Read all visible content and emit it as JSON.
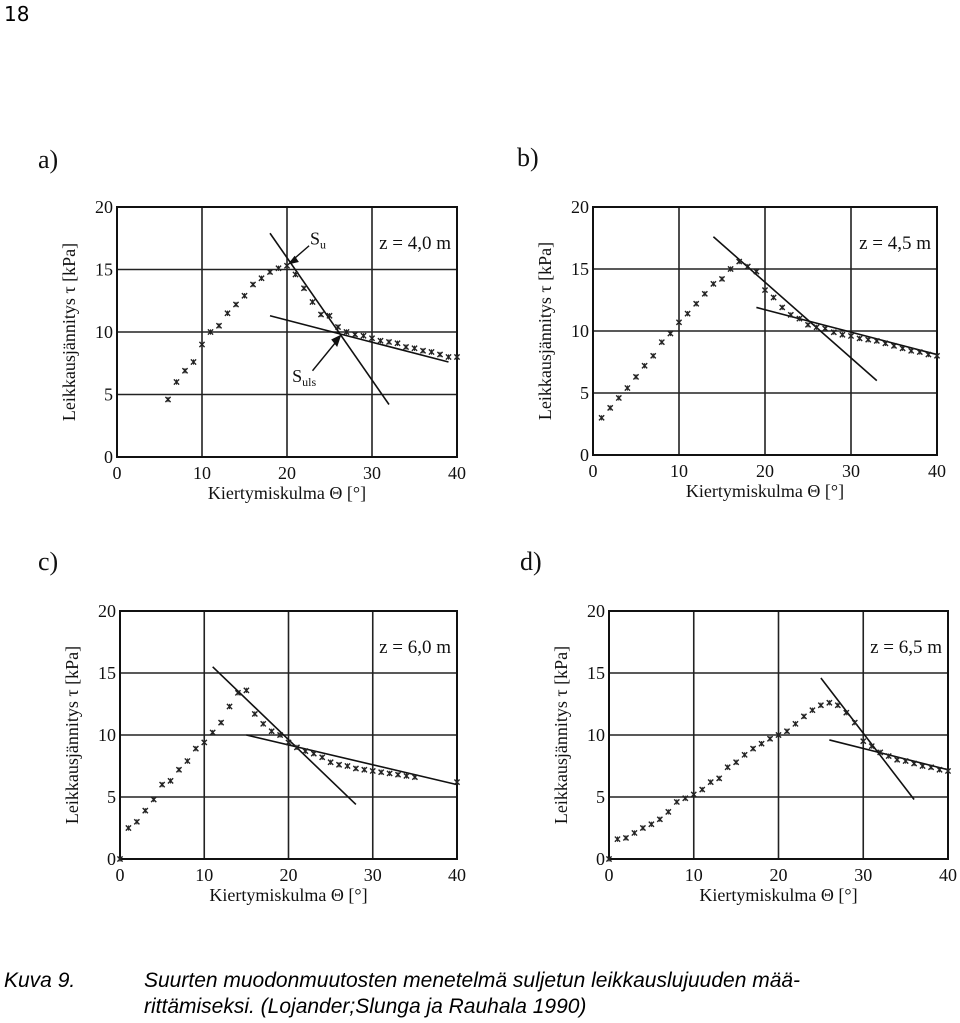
{
  "page_number": "18",
  "caption": {
    "label": "Kuva 9.",
    "line1": "Suurten muodonmuutosten menetelmä suljetun leikkauslujuuden mää-",
    "line2": "rittämiseksi. (Lojander;Slunga ja Rauhala 1990)"
  },
  "chart_data": [
    {
      "panel": "a)",
      "type": "scatter",
      "xlabel": "Kiertymiskulma Θ [°]",
      "ylabel": "Leikkausjännitys τ [kPa]",
      "xlim": [
        0,
        40
      ],
      "ylim": [
        0,
        20
      ],
      "xticks": [
        "0",
        "10",
        "20",
        "30",
        "40"
      ],
      "yticks": [
        "0",
        "5",
        "10",
        "15",
        "20"
      ],
      "depth_label": "z = 4,0 m",
      "annotations": [
        {
          "text": "S",
          "sub": "u"
        },
        {
          "text": "S",
          "sub": "uls"
        }
      ],
      "points": [
        [
          6,
          4.6
        ],
        [
          7,
          6
        ],
        [
          8,
          6.9
        ],
        [
          9,
          7.6
        ],
        [
          10,
          9
        ],
        [
          11,
          10
        ],
        [
          12,
          10.5
        ],
        [
          13,
          11.5
        ],
        [
          14,
          12.2
        ],
        [
          15,
          12.9
        ],
        [
          16,
          13.8
        ],
        [
          17,
          14.3
        ],
        [
          18,
          14.8
        ],
        [
          19,
          15.1
        ],
        [
          20,
          15.3
        ],
        [
          21,
          14.6
        ],
        [
          22,
          13.5
        ],
        [
          23,
          12.4
        ],
        [
          24,
          11.4
        ],
        [
          25,
          11.3
        ],
        [
          26,
          10.4
        ],
        [
          27,
          10
        ],
        [
          28,
          9.8
        ],
        [
          29,
          9.7
        ],
        [
          30,
          9.5
        ],
        [
          31,
          9.3
        ],
        [
          32,
          9.2
        ],
        [
          33,
          9.1
        ],
        [
          34,
          8.8
        ],
        [
          35,
          8.7
        ],
        [
          36,
          8.5
        ],
        [
          37,
          8.4
        ],
        [
          38,
          8.2
        ],
        [
          39,
          8
        ],
        [
          40,
          8
        ]
      ],
      "lines": [
        [
          [
            18,
            17.9
          ],
          [
            32,
            4.2
          ]
        ],
        [
          [
            18,
            11.3
          ],
          [
            39,
            7.6
          ]
        ]
      ],
      "grid": true
    },
    {
      "panel": "b)",
      "type": "scatter",
      "xlabel": "Kiertymiskulma Θ [°]",
      "ylabel": "Leikkausjännitys τ [kPa]",
      "xlim": [
        0,
        40
      ],
      "ylim": [
        0,
        20
      ],
      "xticks": [
        "0",
        "10",
        "20",
        "30",
        "40"
      ],
      "yticks": [
        "0",
        "5",
        "10",
        "15",
        "20"
      ],
      "depth_label": "z = 4,5 m",
      "points": [
        [
          1,
          3
        ],
        [
          2,
          3.8
        ],
        [
          3,
          4.6
        ],
        [
          4,
          5.4
        ],
        [
          5,
          6.3
        ],
        [
          6,
          7.2
        ],
        [
          7,
          8
        ],
        [
          8,
          9.1
        ],
        [
          9,
          9.8
        ],
        [
          10,
          10.7
        ],
        [
          11,
          11.4
        ],
        [
          12,
          12.2
        ],
        [
          13,
          13
        ],
        [
          14,
          13.8
        ],
        [
          15,
          14.2
        ],
        [
          16,
          15
        ],
        [
          17,
          15.6
        ],
        [
          18,
          15.2
        ],
        [
          19,
          14.8
        ],
        [
          20,
          13.3
        ],
        [
          21,
          12.7
        ],
        [
          22,
          11.9
        ],
        [
          23,
          11.3
        ],
        [
          24,
          11
        ],
        [
          25,
          10.5
        ],
        [
          26,
          10.3
        ],
        [
          27,
          10.2
        ],
        [
          28,
          9.9
        ],
        [
          29,
          9.7
        ],
        [
          30,
          9.6
        ],
        [
          31,
          9.4
        ],
        [
          32,
          9.3
        ],
        [
          33,
          9.2
        ],
        [
          34,
          9
        ],
        [
          35,
          8.8
        ],
        [
          36,
          8.6
        ],
        [
          37,
          8.4
        ],
        [
          38,
          8.3
        ],
        [
          39,
          8.1
        ],
        [
          40,
          8
        ]
      ],
      "lines": [
        [
          [
            14,
            17.6
          ],
          [
            33,
            6
          ]
        ],
        [
          [
            19,
            11.9
          ],
          [
            40,
            8.1
          ]
        ]
      ],
      "grid": true
    },
    {
      "panel": "c)",
      "type": "scatter",
      "xlabel": "Kiertymiskulma Θ [°]",
      "ylabel": "Leikkausjännitys τ [kPa]",
      "xlim": [
        0,
        40
      ],
      "ylim": [
        0,
        20
      ],
      "xticks": [
        "0",
        "10",
        "20",
        "30",
        "40"
      ],
      "yticks": [
        "0",
        "5",
        "10",
        "15",
        "20"
      ],
      "depth_label": "z = 6,0 m",
      "points": [
        [
          0,
          0
        ],
        [
          1,
          2.5
        ],
        [
          2,
          3
        ],
        [
          3,
          3.9
        ],
        [
          4,
          4.8
        ],
        [
          5,
          6
        ],
        [
          6,
          6.3
        ],
        [
          7,
          7.2
        ],
        [
          8,
          7.9
        ],
        [
          9,
          8.9
        ],
        [
          10,
          9.4
        ],
        [
          11,
          10.2
        ],
        [
          12,
          11
        ],
        [
          13,
          12.3
        ],
        [
          14,
          13.4
        ],
        [
          15,
          13.6
        ],
        [
          16,
          11.7
        ],
        [
          17,
          10.9
        ],
        [
          18,
          10.3
        ],
        [
          19,
          10
        ],
        [
          20,
          9.4
        ],
        [
          21,
          9
        ],
        [
          22,
          8.7
        ],
        [
          23,
          8.5
        ],
        [
          24,
          8.2
        ],
        [
          25,
          7.8
        ],
        [
          26,
          7.6
        ],
        [
          27,
          7.5
        ],
        [
          28,
          7.3
        ],
        [
          29,
          7.2
        ],
        [
          30,
          7.1
        ],
        [
          31,
          7
        ],
        [
          32,
          6.9
        ],
        [
          33,
          6.8
        ],
        [
          34,
          6.7
        ],
        [
          35,
          6.6
        ],
        [
          40,
          6.2
        ]
      ],
      "lines": [
        [
          [
            11,
            15.5
          ],
          [
            28,
            4.4
          ]
        ],
        [
          [
            15,
            10
          ],
          [
            40,
            6
          ]
        ]
      ],
      "grid": true
    },
    {
      "panel": "d)",
      "type": "scatter",
      "xlabel": "Kiertymiskulma Θ [°]",
      "ylabel": "Leikkausjännitys τ [kPa]",
      "xlim": [
        0,
        40
      ],
      "ylim": [
        0,
        20
      ],
      "xticks": [
        "0",
        "10",
        "20",
        "30",
        "40"
      ],
      "yticks": [
        "0",
        "5",
        "10",
        "15",
        "20"
      ],
      "depth_label": "z = 6,5 m",
      "points": [
        [
          0,
          0
        ],
        [
          1,
          1.6
        ],
        [
          2,
          1.7
        ],
        [
          3,
          2.1
        ],
        [
          4,
          2.5
        ],
        [
          5,
          2.8
        ],
        [
          6,
          3.2
        ],
        [
          7,
          3.8
        ],
        [
          8,
          4.6
        ],
        [
          9,
          4.9
        ],
        [
          10,
          5.2
        ],
        [
          11,
          5.6
        ],
        [
          12,
          6.2
        ],
        [
          13,
          6.5
        ],
        [
          14,
          7.4
        ],
        [
          15,
          7.8
        ],
        [
          16,
          8.4
        ],
        [
          17,
          8.9
        ],
        [
          18,
          9.3
        ],
        [
          19,
          9.7
        ],
        [
          20,
          10
        ],
        [
          21,
          10.3
        ],
        [
          22,
          10.9
        ],
        [
          23,
          11.5
        ],
        [
          24,
          12
        ],
        [
          25,
          12.4
        ],
        [
          26,
          12.6
        ],
        [
          27,
          12.4
        ],
        [
          28,
          11.8
        ],
        [
          29,
          11
        ],
        [
          30,
          9.5
        ],
        [
          31,
          9.1
        ],
        [
          32,
          8.6
        ],
        [
          33,
          8.3
        ],
        [
          34,
          8
        ],
        [
          35,
          7.9
        ],
        [
          36,
          7.7
        ],
        [
          37,
          7.5
        ],
        [
          38,
          7.4
        ],
        [
          39,
          7.2
        ],
        [
          40,
          7.1
        ]
      ],
      "lines": [
        [
          [
            25,
            14.6
          ],
          [
            36,
            4.8
          ]
        ],
        [
          [
            26,
            9.6
          ],
          [
            40,
            7.2
          ]
        ]
      ],
      "grid": true
    }
  ]
}
